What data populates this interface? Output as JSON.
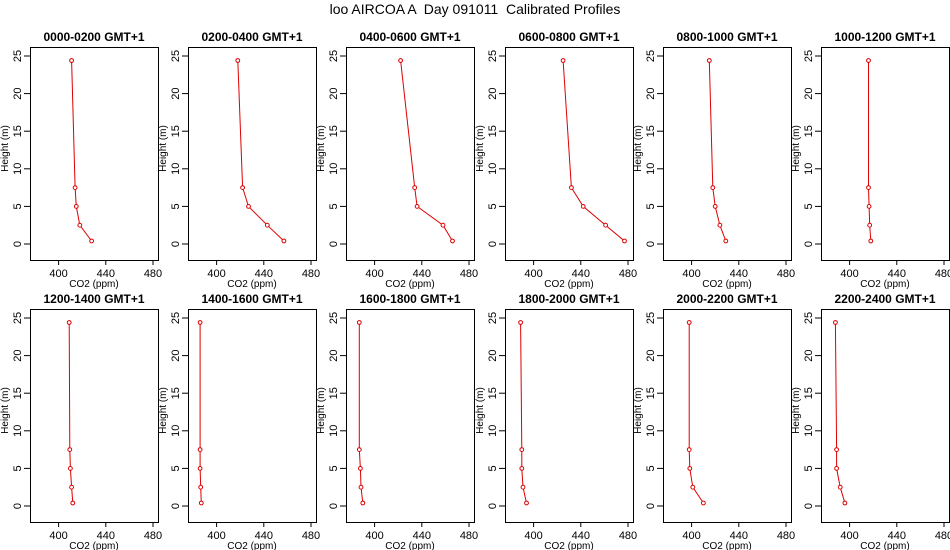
{
  "title": "loo AIRCOA A  Day 091011  Calibrated Profiles",
  "colors": {
    "series": "#dd0000",
    "axis": "#000000",
    "background": "#ffffff"
  },
  "chart_data": [
    {
      "type": "line",
      "title": "0000-0200 GMT+1",
      "xlabel": "CO2 (ppm)",
      "ylabel": "Height (m)",
      "xlim": [
        380,
        480
      ],
      "ylim": [
        0,
        25
      ],
      "xticks": [
        400,
        440,
        480
      ],
      "yticks": [
        0,
        5,
        10,
        15,
        20,
        25
      ],
      "grid": false,
      "points": [
        {
          "x": 411,
          "y": 24.4
        },
        {
          "x": 414,
          "y": 7.5
        },
        {
          "x": 415,
          "y": 5.0
        },
        {
          "x": 418,
          "y": 2.5
        },
        {
          "x": 428,
          "y": 0.4
        }
      ]
    },
    {
      "type": "line",
      "title": "0200-0400 GMT+1",
      "xlabel": "CO2 (ppm)",
      "ylabel": "Height (m)",
      "xlim": [
        380,
        480
      ],
      "ylim": [
        0,
        25
      ],
      "xticks": [
        400,
        440,
        480
      ],
      "yticks": [
        0,
        5,
        10,
        15,
        20,
        25
      ],
      "grid": false,
      "points": [
        {
          "x": 418,
          "y": 24.4
        },
        {
          "x": 422,
          "y": 7.5
        },
        {
          "x": 427,
          "y": 5.0
        },
        {
          "x": 443,
          "y": 2.5
        },
        {
          "x": 457,
          "y": 0.4
        }
      ]
    },
    {
      "type": "line",
      "title": "0400-0600 GMT+1",
      "xlabel": "CO2 (ppm)",
      "ylabel": "Height (m)",
      "xlim": [
        380,
        480
      ],
      "ylim": [
        0,
        25
      ],
      "xticks": [
        400,
        440,
        480
      ],
      "yticks": [
        0,
        5,
        10,
        15,
        20,
        25
      ],
      "grid": false,
      "points": [
        {
          "x": 422,
          "y": 24.4
        },
        {
          "x": 434,
          "y": 7.5
        },
        {
          "x": 436,
          "y": 5.0
        },
        {
          "x": 458,
          "y": 2.5
        },
        {
          "x": 466,
          "y": 0.4
        }
      ]
    },
    {
      "type": "line",
      "title": "0600-0800 GMT+1",
      "xlabel": "CO2 (ppm)",
      "ylabel": "Height (m)",
      "xlim": [
        380,
        480
      ],
      "ylim": [
        0,
        25
      ],
      "xticks": [
        400,
        440,
        480
      ],
      "yticks": [
        0,
        5,
        10,
        15,
        20,
        25
      ],
      "grid": false,
      "points": [
        {
          "x": 425,
          "y": 24.4
        },
        {
          "x": 432,
          "y": 7.5
        },
        {
          "x": 442,
          "y": 5.0
        },
        {
          "x": 461,
          "y": 2.5
        },
        {
          "x": 477,
          "y": 0.4
        }
      ]
    },
    {
      "type": "line",
      "title": "0800-1000 GMT+1",
      "xlabel": "CO2 (ppm)",
      "ylabel": "Height (m)",
      "xlim": [
        380,
        480
      ],
      "ylim": [
        0,
        25
      ],
      "xticks": [
        400,
        440,
        480
      ],
      "yticks": [
        0,
        5,
        10,
        15,
        20,
        25
      ],
      "grid": false,
      "points": [
        {
          "x": 415,
          "y": 24.4
        },
        {
          "x": 418,
          "y": 7.5
        },
        {
          "x": 420,
          "y": 5.0
        },
        {
          "x": 424,
          "y": 2.5
        },
        {
          "x": 429,
          "y": 0.4
        }
      ]
    },
    {
      "type": "line",
      "title": "1000-1200 GMT+1",
      "xlabel": "CO2 (ppm)",
      "ylabel": "Height (m)",
      "xlim": [
        380,
        480
      ],
      "ylim": [
        0,
        25
      ],
      "xticks": [
        400,
        440,
        480
      ],
      "yticks": [
        0,
        5,
        10,
        15,
        20,
        25
      ],
      "grid": false,
      "points": [
        {
          "x": 416,
          "y": 24.4
        },
        {
          "x": 416,
          "y": 7.5
        },
        {
          "x": 416.5,
          "y": 5.0
        },
        {
          "x": 417,
          "y": 2.5
        },
        {
          "x": 418,
          "y": 0.4
        }
      ]
    },
    {
      "type": "line",
      "title": "1200-1400 GMT+1",
      "xlabel": "CO2 (ppm)",
      "ylabel": "Height (m)",
      "xlim": [
        380,
        480
      ],
      "ylim": [
        0,
        25
      ],
      "xticks": [
        400,
        440,
        480
      ],
      "yticks": [
        0,
        5,
        10,
        15,
        20,
        25
      ],
      "grid": false,
      "points": [
        {
          "x": 409,
          "y": 24.4
        },
        {
          "x": 409.5,
          "y": 7.5
        },
        {
          "x": 410,
          "y": 5.0
        },
        {
          "x": 411,
          "y": 2.5
        },
        {
          "x": 412,
          "y": 0.4
        }
      ]
    },
    {
      "type": "line",
      "title": "1400-1600 GMT+1",
      "xlabel": "CO2 (ppm)",
      "ylabel": "Height (m)",
      "xlim": [
        380,
        480
      ],
      "ylim": [
        0,
        25
      ],
      "xticks": [
        400,
        440,
        480
      ],
      "yticks": [
        0,
        5,
        10,
        15,
        20,
        25
      ],
      "grid": false,
      "points": [
        {
          "x": 386,
          "y": 24.4
        },
        {
          "x": 386,
          "y": 7.5
        },
        {
          "x": 386,
          "y": 5.0
        },
        {
          "x": 386.5,
          "y": 2.5
        },
        {
          "x": 387,
          "y": 0.4
        }
      ]
    },
    {
      "type": "line",
      "title": "1600-1800 GMT+1",
      "xlabel": "CO2 (ppm)",
      "ylabel": "Height (m)",
      "xlim": [
        380,
        480
      ],
      "ylim": [
        0,
        25
      ],
      "xticks": [
        400,
        440,
        480
      ],
      "yticks": [
        0,
        5,
        10,
        15,
        20,
        25
      ],
      "grid": false,
      "points": [
        {
          "x": 387,
          "y": 24.4
        },
        {
          "x": 387,
          "y": 7.5
        },
        {
          "x": 388,
          "y": 5.0
        },
        {
          "x": 388.5,
          "y": 2.5
        },
        {
          "x": 390,
          "y": 0.4
        }
      ]
    },
    {
      "type": "line",
      "title": "1800-2000 GMT+1",
      "xlabel": "CO2 (ppm)",
      "ylabel": "Height (m)",
      "xlim": [
        380,
        480
      ],
      "ylim": [
        0,
        25
      ],
      "xticks": [
        400,
        440,
        480
      ],
      "yticks": [
        0,
        5,
        10,
        15,
        20,
        25
      ],
      "grid": false,
      "points": [
        {
          "x": 389,
          "y": 24.4
        },
        {
          "x": 390,
          "y": 7.5
        },
        {
          "x": 390,
          "y": 5.0
        },
        {
          "x": 391,
          "y": 2.5
        },
        {
          "x": 394,
          "y": 0.4
        }
      ]
    },
    {
      "type": "line",
      "title": "2000-2200 GMT+1",
      "xlabel": "CO2 (ppm)",
      "ylabel": "Height (m)",
      "xlim": [
        380,
        480
      ],
      "ylim": [
        0,
        25
      ],
      "xticks": [
        400,
        440,
        480
      ],
      "yticks": [
        0,
        5,
        10,
        15,
        20,
        25
      ],
      "grid": false,
      "points": [
        {
          "x": 398,
          "y": 24.4
        },
        {
          "x": 398,
          "y": 7.5
        },
        {
          "x": 398.5,
          "y": 5.0
        },
        {
          "x": 401,
          "y": 2.5
        },
        {
          "x": 410,
          "y": 0.4
        }
      ]
    },
    {
      "type": "line",
      "title": "2200-2400 GMT+1",
      "xlabel": "CO2 (ppm)",
      "ylabel": "Height (m)",
      "xlim": [
        380,
        480
      ],
      "ylim": [
        0,
        25
      ],
      "xticks": [
        400,
        440,
        480
      ],
      "yticks": [
        0,
        5,
        10,
        15,
        20,
        25
      ],
      "grid": false,
      "points": [
        {
          "x": 388,
          "y": 24.4
        },
        {
          "x": 389,
          "y": 7.5
        },
        {
          "x": 389,
          "y": 5.0
        },
        {
          "x": 392,
          "y": 2.5
        },
        {
          "x": 396,
          "y": 0.4
        }
      ]
    }
  ]
}
